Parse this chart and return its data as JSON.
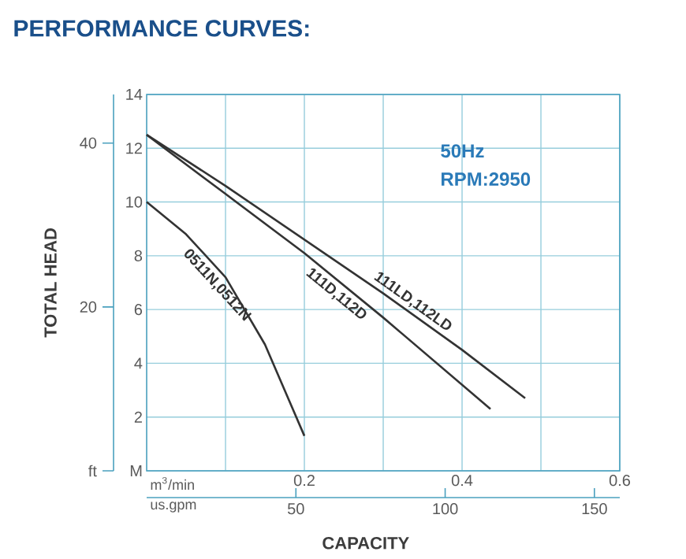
{
  "chart_data": {
    "type": "line",
    "title": "PERFORMANCE CURVES:",
    "xlabel": "CAPACITY",
    "y2label": "TOTAL HEAD",
    "annotations": [
      "50Hz",
      "RPM:2950",
      "m$^{3}$/min",
      "us.gpm"
    ],
    "xlim": [
      0,
      0.6
    ],
    "xticks": [
      {
        "value": 0.1,
        "label": null
      },
      0.2,
      {
        "value": 0.3,
        "label": null
      },
      0.4,
      {
        "value": 0.5,
        "label": null
      },
      0.6
    ],
    "ylim": [
      0,
      14
    ],
    "yticks": [
      {
        "value": 0,
        "label": "M"
      },
      2,
      4,
      6,
      8,
      10,
      12,
      14
    ],
    "y2lim": [
      0,
      45.93
    ],
    "y2ticks": [
      {
        "value": 0,
        "label": "ft"
      },
      20,
      40
    ],
    "x2lim": [
      0,
      158.5
    ],
    "x2ticks": [
      50,
      100,
      150
    ],
    "grid": true,
    "series": [
      {
        "name": "111LD,112LD",
        "color": "#333333",
        "x": [
          0,
          0.1,
          0.2,
          0.3,
          0.4,
          0.48
        ],
        "values": [
          12.5,
          10.6,
          8.6,
          6.6,
          4.5,
          2.7
        ]
      },
      {
        "name": "111D,112D",
        "color": "#333333",
        "x": [
          0,
          0.1,
          0.2,
          0.3,
          0.436
        ],
        "values": [
          12.5,
          10.3,
          8.1,
          5.7,
          2.3
        ]
      },
      {
        "name": "0511N,0512N",
        "color": "#333333",
        "x": [
          0,
          0.05,
          0.1,
          0.15,
          0.2
        ],
        "values": [
          10,
          8.8,
          7.2,
          4.7,
          1.3
        ]
      }
    ]
  }
}
